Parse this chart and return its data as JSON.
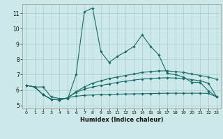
{
  "title": "",
  "xlabel": "Humidex (Indice chaleur)",
  "ylabel": "",
  "xlim": [
    -0.5,
    23.5
  ],
  "ylim": [
    4.8,
    11.6
  ],
  "bg_color": "#cce8e8",
  "grid_color": "#aacccc",
  "line_color": "#1a6b6b",
  "xticks": [
    0,
    1,
    2,
    3,
    4,
    5,
    6,
    7,
    8,
    9,
    10,
    11,
    12,
    13,
    14,
    15,
    16,
    17,
    18,
    19,
    20,
    21,
    22,
    23
  ],
  "yticks": [
    5,
    6,
    7,
    8,
    9,
    10,
    11
  ],
  "line1_x": [
    0,
    1,
    2,
    3,
    4,
    5,
    6,
    7,
    8,
    9,
    10,
    11,
    12,
    13,
    14,
    15,
    16,
    17,
    18,
    19,
    20,
    21,
    22,
    23
  ],
  "line1_y": [
    6.3,
    6.2,
    6.2,
    5.55,
    5.45,
    5.45,
    7.0,
    11.1,
    11.35,
    8.5,
    7.8,
    8.2,
    8.5,
    8.85,
    9.6,
    8.85,
    8.3,
    7.1,
    7.0,
    6.85,
    6.5,
    6.5,
    5.95,
    5.55
  ],
  "line2_x": [
    0,
    1,
    2,
    3,
    4,
    5,
    6,
    7,
    8,
    9,
    10,
    11,
    12,
    13,
    14,
    15,
    16,
    17,
    18,
    19,
    20,
    21,
    22,
    23
  ],
  "line2_y": [
    6.3,
    6.2,
    5.7,
    5.4,
    5.35,
    5.5,
    5.9,
    6.2,
    6.45,
    6.6,
    6.75,
    6.85,
    6.95,
    7.05,
    7.15,
    7.2,
    7.25,
    7.25,
    7.2,
    7.15,
    7.05,
    6.95,
    6.85,
    6.7
  ],
  "line3_x": [
    0,
    1,
    2,
    3,
    4,
    5,
    6,
    7,
    8,
    9,
    10,
    11,
    12,
    13,
    14,
    15,
    16,
    17,
    18,
    19,
    20,
    21,
    22,
    23
  ],
  "line3_y": [
    6.3,
    6.2,
    5.7,
    5.4,
    5.35,
    5.5,
    5.85,
    6.05,
    6.2,
    6.3,
    6.4,
    6.5,
    6.58,
    6.65,
    6.72,
    6.75,
    6.78,
    6.8,
    6.78,
    6.75,
    6.68,
    6.6,
    6.45,
    5.55
  ],
  "line4_x": [
    0,
    1,
    2,
    3,
    4,
    5,
    6,
    7,
    8,
    9,
    10,
    11,
    12,
    13,
    14,
    15,
    16,
    17,
    18,
    19,
    20,
    21,
    22,
    23
  ],
  "line4_y": [
    6.3,
    6.2,
    5.7,
    5.4,
    5.35,
    5.5,
    5.6,
    5.65,
    5.68,
    5.7,
    5.72,
    5.73,
    5.74,
    5.75,
    5.76,
    5.77,
    5.78,
    5.79,
    5.79,
    5.79,
    5.79,
    5.79,
    5.78,
    5.55
  ]
}
